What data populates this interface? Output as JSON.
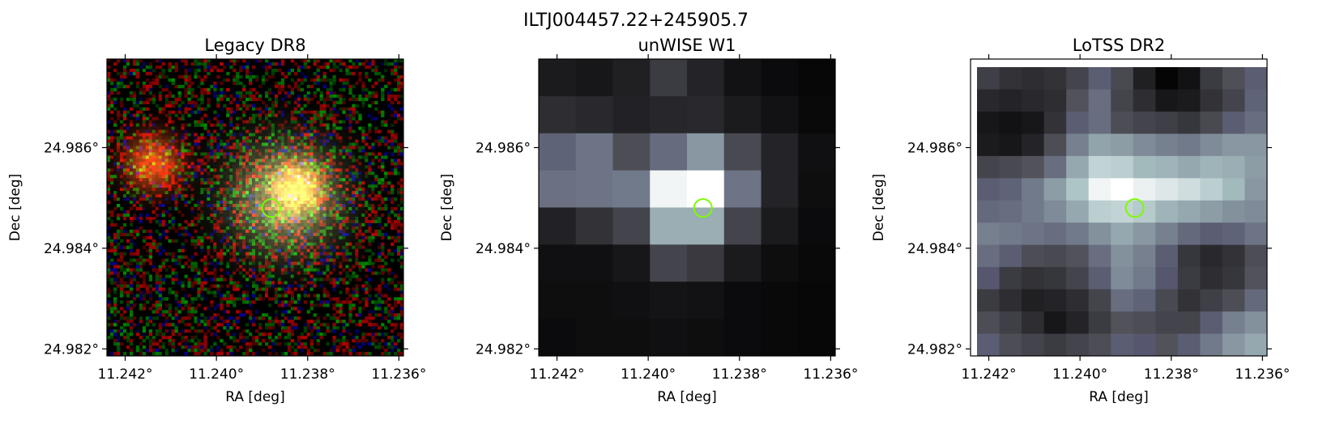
{
  "figure": {
    "suptitle": "ILTJ004457.22+245905.7"
  },
  "marker": {
    "color": "#7cfc00",
    "shape": "circle",
    "ra": 11.2388,
    "dec": 24.9848
  },
  "chart_data": [
    {
      "type": "heatmap",
      "title": "Legacy DR8",
      "xlabel": "RA [deg]",
      "ylabel": "Dec [deg]",
      "xlim": [
        11.2424,
        11.2359
      ],
      "ylim": [
        24.98186,
        24.98776
      ],
      "xticks": [
        11.242,
        11.24,
        11.238,
        11.236
      ],
      "xtick_labels": [
        "11.242°",
        "11.240°",
        "11.238°",
        "11.236°"
      ],
      "yticks": [
        24.982,
        24.984,
        24.986
      ],
      "ytick_labels": [
        "24.982°",
        "24.984°",
        "24.986°"
      ],
      "colormap": "rgb composite",
      "sources": [
        {
          "ra": 11.2414,
          "dec": 24.9857,
          "color": "#e8521a",
          "sigma": 0.00042
        },
        {
          "ra": 11.2385,
          "dec": 24.985,
          "color": "#9aa36a",
          "sigma": 0.0008
        },
        {
          "ra": 11.2382,
          "dec": 24.9852,
          "color": "#e07b1e",
          "sigma": 0.00035
        }
      ]
    },
    {
      "type": "heatmap",
      "title": "unWISE W1",
      "xlabel": "RA [deg]",
      "ylabel": "Dec [deg]",
      "xlim": [
        11.2424,
        11.2359
      ],
      "ylim": [
        24.98186,
        24.98776
      ],
      "xticks": [
        11.242,
        11.24,
        11.238,
        11.236
      ],
      "xtick_labels": [
        "11.242°",
        "11.240°",
        "11.238°",
        "11.236°"
      ],
      "yticks": [
        24.982,
        24.984,
        24.986
      ],
      "ytick_labels": [
        "24.982°",
        "24.984°",
        "24.986°"
      ],
      "colormap": "bone",
      "intensity": [
        [
          0.12,
          0.1,
          0.14,
          0.26,
          0.16,
          0.08,
          0.05,
          0.03
        ],
        [
          0.2,
          0.18,
          0.15,
          0.17,
          0.18,
          0.12,
          0.08,
          0.04
        ],
        [
          0.42,
          0.48,
          0.34,
          0.45,
          0.6,
          0.32,
          0.16,
          0.07
        ],
        [
          0.47,
          0.48,
          0.5,
          0.96,
          1.0,
          0.48,
          0.16,
          0.06
        ],
        [
          0.15,
          0.22,
          0.3,
          0.68,
          0.68,
          0.3,
          0.12,
          0.05
        ],
        [
          0.07,
          0.07,
          0.1,
          0.3,
          0.25,
          0.12,
          0.06,
          0.04
        ],
        [
          0.06,
          0.06,
          0.07,
          0.09,
          0.08,
          0.05,
          0.04,
          0.03
        ],
        [
          0.05,
          0.06,
          0.06,
          0.07,
          0.06,
          0.05,
          0.04,
          0.03
        ]
      ]
    },
    {
      "type": "heatmap",
      "title": "LoTSS DR2",
      "xlabel": "RA [deg]",
      "ylabel": "Dec [deg]",
      "xlim": [
        11.2424,
        11.2359
      ],
      "ylim": [
        24.98186,
        24.98776
      ],
      "xticks": [
        11.242,
        11.24,
        11.238,
        11.236
      ],
      "xtick_labels": [
        "11.242°",
        "11.240°",
        "11.238°",
        "11.236°"
      ],
      "yticks": [
        24.982,
        24.984,
        24.986
      ],
      "ytick_labels": [
        "24.982°",
        "24.984°",
        "24.986°"
      ],
      "colormap": "bone",
      "intensity": [
        [
          0.28,
          0.22,
          0.2,
          0.22,
          0.3,
          0.4,
          0.32,
          0.14,
          0.02,
          0.08,
          0.26,
          0.35,
          0.4
        ],
        [
          0.18,
          0.16,
          0.18,
          0.2,
          0.36,
          0.46,
          0.3,
          0.2,
          0.1,
          0.12,
          0.22,
          0.3,
          0.42
        ],
        [
          0.1,
          0.08,
          0.1,
          0.22,
          0.4,
          0.46,
          0.34,
          0.3,
          0.28,
          0.24,
          0.32,
          0.4,
          0.46
        ],
        [
          0.12,
          0.1,
          0.16,
          0.34,
          0.52,
          0.64,
          0.62,
          0.56,
          0.52,
          0.5,
          0.56,
          0.6,
          0.6
        ],
        [
          0.3,
          0.32,
          0.36,
          0.46,
          0.66,
          0.82,
          0.8,
          0.72,
          0.7,
          0.66,
          0.7,
          0.68,
          0.62
        ],
        [
          0.4,
          0.42,
          0.5,
          0.62,
          0.76,
          0.96,
          1.0,
          0.94,
          0.9,
          0.86,
          0.8,
          0.72,
          0.6
        ],
        [
          0.44,
          0.46,
          0.5,
          0.56,
          0.66,
          0.8,
          0.82,
          0.78,
          0.7,
          0.66,
          0.62,
          0.58,
          0.56
        ],
        [
          0.52,
          0.5,
          0.48,
          0.46,
          0.5,
          0.58,
          0.66,
          0.6,
          0.52,
          0.44,
          0.4,
          0.42,
          0.48
        ],
        [
          0.46,
          0.4,
          0.34,
          0.32,
          0.36,
          0.46,
          0.58,
          0.52,
          0.4,
          0.24,
          0.18,
          0.22,
          0.34
        ],
        [
          0.38,
          0.26,
          0.22,
          0.24,
          0.3,
          0.4,
          0.56,
          0.5,
          0.38,
          0.26,
          0.2,
          0.24,
          0.36
        ],
        [
          0.26,
          0.2,
          0.14,
          0.16,
          0.2,
          0.3,
          0.46,
          0.42,
          0.32,
          0.22,
          0.28,
          0.34,
          0.44
        ],
        [
          0.34,
          0.28,
          0.2,
          0.1,
          0.16,
          0.26,
          0.36,
          0.34,
          0.3,
          0.3,
          0.4,
          0.52,
          0.58
        ],
        [
          0.4,
          0.34,
          0.3,
          0.26,
          0.3,
          0.34,
          0.4,
          0.38,
          0.36,
          0.4,
          0.5,
          0.6,
          0.66
        ]
      ]
    }
  ]
}
